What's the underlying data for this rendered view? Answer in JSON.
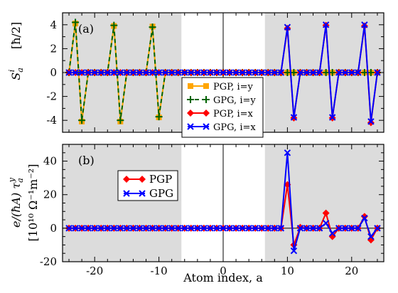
{
  "chart_data": [
    {
      "type": "line",
      "panel_label": "(a)",
      "ylabel_main": "S",
      "ylabel_sub": "a",
      "ylabel_sup": "i",
      "ylabel_unit": "[ħ/2]",
      "xlim": [
        -25,
        25
      ],
      "ylim": [
        -5,
        5
      ],
      "yticks": [
        "-4",
        "-2",
        "0",
        "2",
        "4"
      ],
      "ytick_values": [
        -4,
        -2,
        0,
        2,
        4
      ],
      "shaded_x_ranges": [
        [
          -25,
          -6.5
        ],
        [
          6.5,
          25
        ]
      ],
      "vline_x": 0,
      "legend_position": "lower-center",
      "series": [
        {
          "name": "PGP, i=y",
          "color": "#ffa500",
          "marker": "square",
          "x": [
            -23,
            -22,
            -17,
            -16,
            -11,
            -10
          ],
          "y": [
            4.1,
            -4.1,
            3.9,
            -4.1,
            3.85,
            -3.75
          ]
        },
        {
          "name": "GPG, i=y",
          "color": "#006400",
          "marker": "plus",
          "x": [
            -23,
            -22,
            -17,
            -16,
            -11,
            -10
          ],
          "y": [
            4.2,
            -4.0,
            3.95,
            -4.0,
            3.8,
            -3.7
          ]
        },
        {
          "name": "PGP, i=x",
          "color": "#ff0000",
          "marker": "diamond",
          "x": [
            10,
            11,
            16,
            17,
            22,
            23
          ],
          "y": [
            3.7,
            -3.8,
            3.95,
            -3.8,
            3.9,
            -4.2
          ]
        },
        {
          "name": "GPG, i=x",
          "color": "#0000ff",
          "marker": "x",
          "x": [
            10,
            11,
            16,
            17,
            22,
            23
          ],
          "y": [
            3.8,
            -3.75,
            4.0,
            -3.75,
            4.0,
            -4.1
          ]
        }
      ]
    },
    {
      "type": "line",
      "panel_label": "(b)",
      "ylabel_line1": "e/(ħA) τ",
      "ylabel_line1_sub": "a",
      "ylabel_line1_sup": "y",
      "ylabel_line2": "[10¹⁰ Ω⁻¹m⁻²]",
      "xlabel": "Atom index, a",
      "xlim": [
        -25,
        25
      ],
      "ylim": [
        -20,
        50
      ],
      "xticks": [
        "-20",
        "-10",
        "0",
        "10",
        "20"
      ],
      "xtick_values": [
        -20,
        -10,
        0,
        10,
        20
      ],
      "yticks": [
        "-20",
        "0",
        "20",
        "40"
      ],
      "ytick_values": [
        -20,
        0,
        20,
        40
      ],
      "shaded_x_ranges": [
        [
          -25,
          -6.5
        ],
        [
          6.5,
          25
        ]
      ],
      "vline_x": 0,
      "legend_position": "upper-left",
      "series": [
        {
          "name": "PGP",
          "color": "#ff0000",
          "marker": "diamond",
          "x": [
            10,
            11,
            12,
            15,
            16,
            17,
            18,
            21,
            22,
            23,
            24
          ],
          "y": [
            26,
            -10,
            0.5,
            0,
            9,
            -5,
            0,
            0,
            7,
            -7,
            0
          ]
        },
        {
          "name": "GPG",
          "color": "#0000ff",
          "marker": "x",
          "x": [
            10,
            11,
            12,
            15,
            16,
            17,
            18,
            21,
            22,
            23,
            24
          ],
          "y": [
            45,
            -13.5,
            0,
            0,
            3,
            -3,
            0,
            0,
            6,
            -5,
            0
          ]
        }
      ]
    }
  ]
}
